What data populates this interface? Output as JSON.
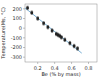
{
  "chart_data": {
    "type": "scatter",
    "title": "",
    "x_label": "Be (% by mass)",
    "y_label": "Temperature(Ms, °C)",
    "x": [
      0.08,
      0.13,
      0.2,
      0.27,
      0.32,
      0.37,
      0.42,
      0.44,
      0.46,
      0.48,
      0.52,
      0.58,
      0.63,
      0.67
    ],
    "values": [
      210,
      160,
      100,
      50,
      10,
      -25,
      -60,
      -70,
      -80,
      -95,
      -120,
      -155,
      -185,
      -210
    ],
    "errors": [
      18,
      18,
      18,
      18,
      18,
      18,
      18,
      18,
      18,
      18,
      18,
      18,
      18,
      18
    ],
    "color": "#222222",
    "marker": "square",
    "trend_line": {
      "x": [
        0.05,
        0.72
      ],
      "values": [
        209.18,
        -258.37
      ],
      "color": "#7ab0d4"
    },
    "xlim": [
      0.05,
      0.9
    ],
    "ylim": [
      -350,
      250
    ],
    "xticks": [
      0.2,
      0.4,
      0.6,
      0.8
    ],
    "yticks": [
      -300,
      -200,
      -100,
      0,
      100,
      200
    ],
    "grid": false
  }
}
